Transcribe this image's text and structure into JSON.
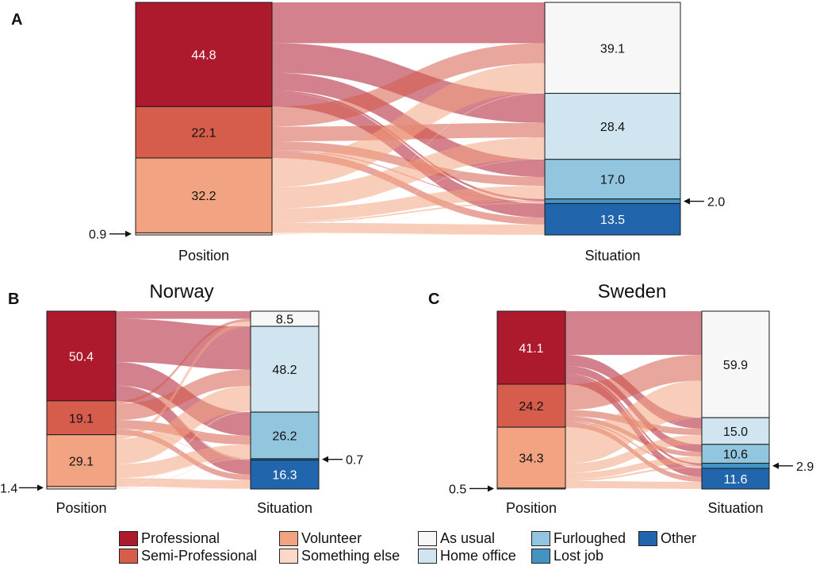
{
  "colors": {
    "Professional": "#ae1a2d",
    "Semi-Professional": "#d65c4b",
    "Volunteer": "#f2a482",
    "Something else": "#fbd9c8",
    "As usual": "#f7f7f7",
    "Home office": "#d1e5f0",
    "Furloughed": "#92c5de",
    "Lost job": "#4393c3",
    "Other": "#2166ac"
  },
  "legend": {
    "professional": "Professional",
    "semi_professional": "Semi-Professional",
    "volunteer": "Volunteer",
    "something_else": "Something else",
    "as_usual": "As usual",
    "home_office": "Home office",
    "furloughed": "Furloughed",
    "lost_job": "Lost job",
    "other": "Other"
  },
  "chart_data": [
    {
      "type": "sankey",
      "panel_label": "A",
      "title": "",
      "left_axis_label": "Position",
      "right_axis_label": "Situation",
      "left_nodes": [
        {
          "name": "Professional",
          "value": 44.8,
          "label": "44.8"
        },
        {
          "name": "Semi-Professional",
          "value": 22.1,
          "label": "22.1"
        },
        {
          "name": "Volunteer",
          "value": 32.2,
          "label": "32.2"
        },
        {
          "name": "Something else",
          "value": 0.9,
          "label": "0.9",
          "arrow": true
        }
      ],
      "right_nodes": [
        {
          "name": "As usual",
          "value": 39.1,
          "label": "39.1"
        },
        {
          "name": "Home office",
          "value": 28.4,
          "label": "28.4"
        },
        {
          "name": "Furloughed",
          "value": 17.0,
          "label": "17.0"
        },
        {
          "name": "Lost job",
          "value": 2.0,
          "label": "2.0",
          "arrow": true
        },
        {
          "name": "Other",
          "value": 13.5,
          "label": "13.5"
        }
      ]
    },
    {
      "type": "sankey",
      "panel_label": "B",
      "title": "Norway",
      "left_axis_label": "Position",
      "right_axis_label": "Situation",
      "left_nodes": [
        {
          "name": "Professional",
          "value": 50.4,
          "label": "50.4"
        },
        {
          "name": "Semi-Professional",
          "value": 19.1,
          "label": "19.1"
        },
        {
          "name": "Volunteer",
          "value": 29.1,
          "label": "29.1"
        },
        {
          "name": "Something else",
          "value": 1.4,
          "label": "1.4",
          "arrow": true
        }
      ],
      "right_nodes": [
        {
          "name": "As usual",
          "value": 8.5,
          "label": "8.5"
        },
        {
          "name": "Home office",
          "value": 48.2,
          "label": "48.2"
        },
        {
          "name": "Furloughed",
          "value": 26.2,
          "label": "26.2"
        },
        {
          "name": "Lost job",
          "value": 0.7,
          "label": "0.7",
          "arrow": true
        },
        {
          "name": "Other",
          "value": 16.3,
          "label": "16.3"
        }
      ]
    },
    {
      "type": "sankey",
      "panel_label": "C",
      "title": "Sweden",
      "left_axis_label": "Position",
      "right_axis_label": "Situation",
      "left_nodes": [
        {
          "name": "Professional",
          "value": 41.1,
          "label": "41.1"
        },
        {
          "name": "Semi-Professional",
          "value": 24.2,
          "label": "24.2"
        },
        {
          "name": "Volunteer",
          "value": 34.3,
          "label": "34.3"
        },
        {
          "name": "Something else",
          "value": 0.5,
          "label": "0.5",
          "arrow": true
        }
      ],
      "right_nodes": [
        {
          "name": "As usual",
          "value": 59.9,
          "label": "59.9"
        },
        {
          "name": "Home office",
          "value": 15.0,
          "label": "15.0"
        },
        {
          "name": "Furloughed",
          "value": 10.6,
          "label": "10.6"
        },
        {
          "name": "Lost job",
          "value": 2.9,
          "label": "2.9",
          "arrow": true
        },
        {
          "name": "Other",
          "value": 11.6,
          "label": "11.6"
        }
      ]
    }
  ]
}
